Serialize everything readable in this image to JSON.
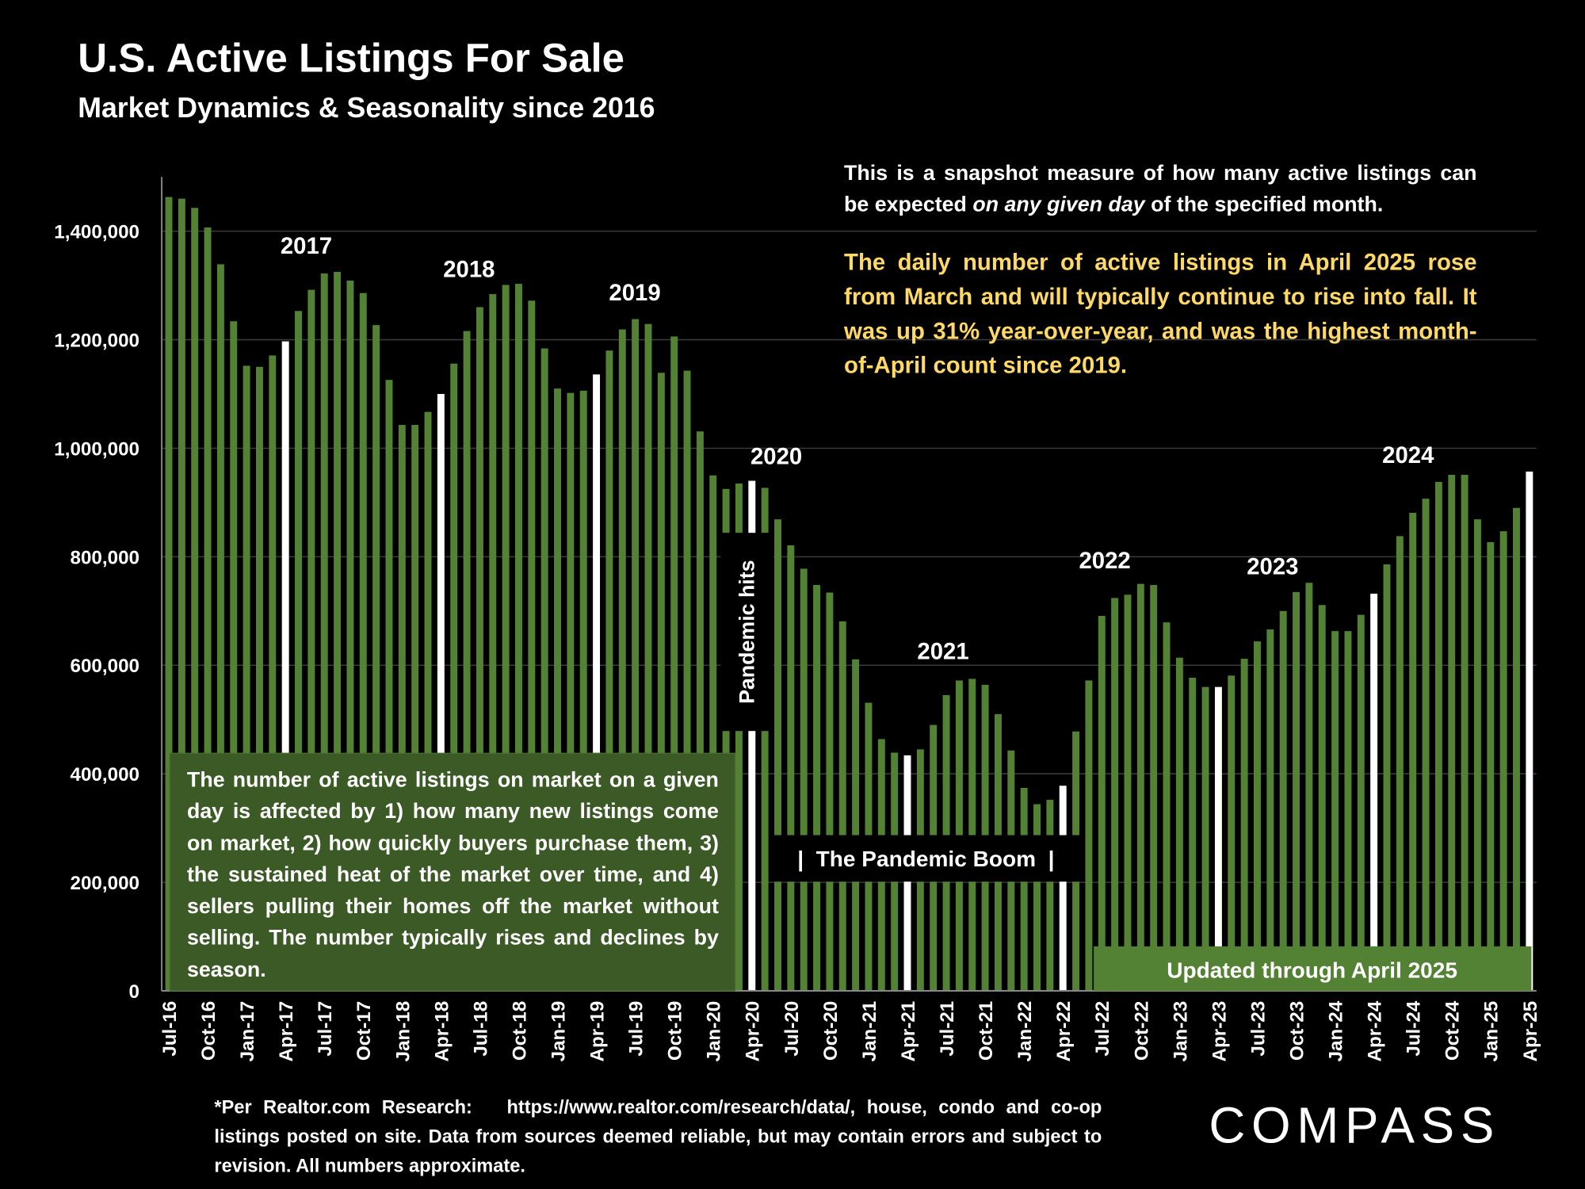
{
  "chart_data": {
    "type": "bar",
    "title": "U.S. Active Listings For Sale",
    "subtitle": "Market Dynamics & Seasonality since 2016",
    "categories": [
      "Jul-16",
      null,
      null,
      "Oct-16",
      null,
      null,
      "Jan-17",
      null,
      null,
      "Apr-17",
      null,
      null,
      "Jul-17",
      null,
      null,
      "Oct-17",
      null,
      null,
      "Jan-18",
      null,
      null,
      "Apr-18",
      null,
      null,
      "Jul-18",
      null,
      null,
      "Oct-18",
      null,
      null,
      "Jan-19",
      null,
      null,
      "Apr-19",
      null,
      null,
      "Jul-19",
      null,
      null,
      "Oct-19",
      null,
      null,
      "Jan-20",
      null,
      null,
      "Apr-20",
      null,
      null,
      "Jul-20",
      null,
      null,
      "Oct-20",
      null,
      null,
      "Jan-21",
      null,
      null,
      "Apr-21",
      null,
      null,
      "Jul-21",
      null,
      null,
      "Oct-21",
      null,
      null,
      "Jan-22",
      null,
      null,
      "Apr-22",
      null,
      null,
      "Jul-22",
      null,
      null,
      "Oct-22",
      null,
      null,
      "Jan-23",
      null,
      null,
      "Apr-23",
      null,
      null,
      "Jul-23",
      null,
      null,
      "Oct-23",
      null,
      null,
      "Jan-24",
      null,
      null,
      "Apr-24",
      null,
      null,
      "Jul-24",
      null,
      null,
      "Oct-24",
      null,
      null,
      "Jan-25",
      null,
      null,
      "Apr-25"
    ],
    "values": [
      1463000,
      1460000,
      1443000,
      1407000,
      1339000,
      1234000,
      1152000,
      1150000,
      1171000,
      1197000,
      1253000,
      1292000,
      1322000,
      1325000,
      1309000,
      1286000,
      1227000,
      1126000,
      1043000,
      1043000,
      1067000,
      1100000,
      1156000,
      1216000,
      1260000,
      1284000,
      1301000,
      1303000,
      1272000,
      1184000,
      1110000,
      1102000,
      1106000,
      1136000,
      1180000,
      1219000,
      1238000,
      1229000,
      1139000,
      1206000,
      1143000,
      1031000,
      950000,
      925000,
      935000,
      940000,
      927000,
      869000,
      821000,
      778000,
      748000,
      734000,
      681000,
      611000,
      531000,
      464000,
      439000,
      434000,
      445000,
      490000,
      545000,
      572000,
      575000,
      564000,
      510000,
      443000,
      374000,
      344000,
      352000,
      378000,
      478000,
      572000,
      691000,
      724000,
      730000,
      750000,
      748000,
      679000,
      614000,
      577000,
      560000,
      560000,
      581000,
      612000,
      644000,
      666000,
      700000,
      735000,
      752000,
      711000,
      663000,
      663000,
      693000,
      732000,
      786000,
      838000,
      881000,
      907000,
      938000,
      951000,
      951000,
      869000,
      827000,
      847000,
      890000,
      957000
    ],
    "colors": [
      "#548235",
      "#548235",
      "#548235",
      "#548235",
      "#548235",
      "#548235",
      "#548235",
      "#548235",
      "#548235",
      "#ffffff",
      "#548235",
      "#548235",
      "#548235",
      "#548235",
      "#548235",
      "#548235",
      "#548235",
      "#548235",
      "#548235",
      "#548235",
      "#548235",
      "#ffffff",
      "#548235",
      "#548235",
      "#548235",
      "#548235",
      "#548235",
      "#548235",
      "#548235",
      "#548235",
      "#548235",
      "#548235",
      "#548235",
      "#ffffff",
      "#548235",
      "#548235",
      "#548235",
      "#548235",
      "#548235",
      "#548235",
      "#548235",
      "#548235",
      "#548235",
      "#548235",
      "#548235",
      "#ffffff",
      "#548235",
      "#548235",
      "#548235",
      "#548235",
      "#548235",
      "#548235",
      "#548235",
      "#548235",
      "#548235",
      "#548235",
      "#548235",
      "#ffffff",
      "#548235",
      "#548235",
      "#548235",
      "#548235",
      "#548235",
      "#548235",
      "#548235",
      "#548235",
      "#548235",
      "#548235",
      "#548235",
      "#ffffff",
      "#548235",
      "#548235",
      "#548235",
      "#548235",
      "#548235",
      "#548235",
      "#548235",
      "#548235",
      "#548235",
      "#548235",
      "#548235",
      "#ffffff",
      "#548235",
      "#548235",
      "#548235",
      "#548235",
      "#548235",
      "#548235",
      "#548235",
      "#548235",
      "#548235",
      "#548235",
      "#548235",
      "#ffffff",
      "#548235",
      "#548235",
      "#548235",
      "#548235",
      "#548235",
      "#548235",
      "#548235",
      "#548235",
      "#548235",
      "#548235",
      "#548235",
      "#ffffff"
    ],
    "ylim": [
      0,
      1500000
    ],
    "yticks": [
      0,
      {
        "value": 200000,
        "label": "200,000"
      },
      {
        "value": 400000,
        "label": "400,000"
      },
      {
        "value": 600000,
        "label": "600,000"
      },
      {
        "value": 800000,
        "label": "800,000"
      },
      {
        "value": 1000000,
        "label": "1,000,000"
      },
      {
        "value": 1200000,
        "label": "1,200,000"
      },
      {
        "value": 1400000,
        "label": "1,400,000"
      }
    ],
    "grid": true,
    "year_labels": [
      "2017",
      "2018",
      "2019",
      "2020",
      "2021",
      "2022",
      "2023",
      "2024"
    ],
    "note": [
      "This is a snapshot measure of how many active listings can be expected ",
      "on any given day",
      " of the specified month."
    ],
    "highlight_note": "The daily number of active listings in April 2025 rose from March and will typically continue to rise into fall. It was up 31% year-over-year, and was the highest month-of-April count since 2019.",
    "explanation": "The number of active listings on market on a given day is affected by 1) how many new listings come on market, 2) how quickly buyers purchase them, 3) the sustained heat of the market over time, and 4) sellers pulling their homes off the market without selling. The number typically rises and declines by season.",
    "pandemic_hits": "Pandemic hits",
    "pandemic_boom": "|  The Pandemic Boom  |",
    "updated": "Updated through April 2025",
    "footnote": "*Per Realtor.com Research:   https://www.realtor.com/research/data/, house, condo and co-op listings posted on site. Data from sources deemed reliable, but may contain errors and subject to revision. All numbers approximate.",
    "logo": "COMPASS"
  }
}
